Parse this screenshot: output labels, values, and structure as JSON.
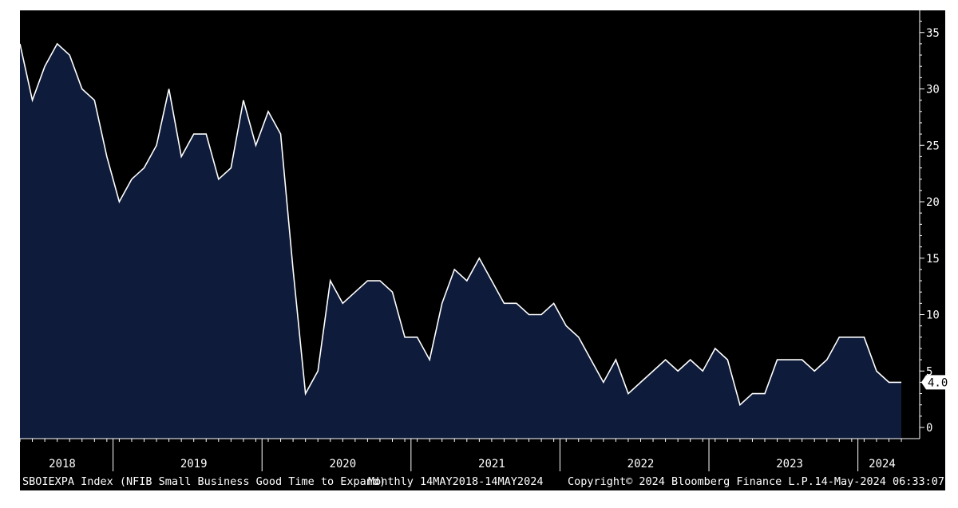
{
  "chart_data": {
    "type": "area",
    "title": "",
    "xlabel": "",
    "ylabel": "",
    "frequency": "Monthly",
    "x_start": "2018-05",
    "x_end": "2024-04",
    "x_tick_labels": [
      "2018",
      "2019",
      "2020",
      "2021",
      "2022",
      "2023",
      "2024"
    ],
    "y_ticks": [
      0,
      5,
      10,
      15,
      20,
      25,
      30,
      35
    ],
    "y_tick_labels": [
      "0",
      "5",
      "10",
      "15",
      "20",
      "25",
      "30",
      "35"
    ],
    "ylim": [
      -1,
      37
    ],
    "grid": false,
    "legend": "none",
    "series": [
      {
        "name": "SBOIEXPA Index",
        "values": [
          34,
          29,
          32,
          34,
          33,
          30,
          29,
          24,
          20,
          22,
          23,
          25,
          30,
          24,
          26,
          26,
          22,
          23,
          29,
          25,
          28,
          26,
          14,
          3,
          5,
          13,
          11,
          12,
          13,
          13,
          12,
          8,
          8,
          6,
          11,
          14,
          13,
          15,
          13,
          11,
          11,
          10,
          10,
          11,
          9,
          8,
          6,
          4,
          6,
          3,
          4,
          5,
          6,
          5,
          6,
          5,
          7,
          6,
          2,
          3,
          3,
          6,
          6,
          6,
          5,
          6,
          8,
          8,
          8,
          5,
          4,
          4
        ],
        "fill_color": "#0e1b3a",
        "line_color": "#ffffff",
        "last_value_label": "4.0"
      }
    ]
  },
  "footer": {
    "ticker_description": "SBOIEXPA Index (NFIB Small Business Good Time to Expand)",
    "range": "Monthly 14MAY2018-14MAY2024",
    "copyright": "Copyright© 2024 Bloomberg Finance L.P.",
    "timestamp": "14-May-2024 06:33:07"
  },
  "colors": {
    "background": "#000000",
    "area_fill": "#0e1b3a",
    "line": "#ffffff",
    "text": "#ffffff",
    "axis": "#ffffff"
  }
}
